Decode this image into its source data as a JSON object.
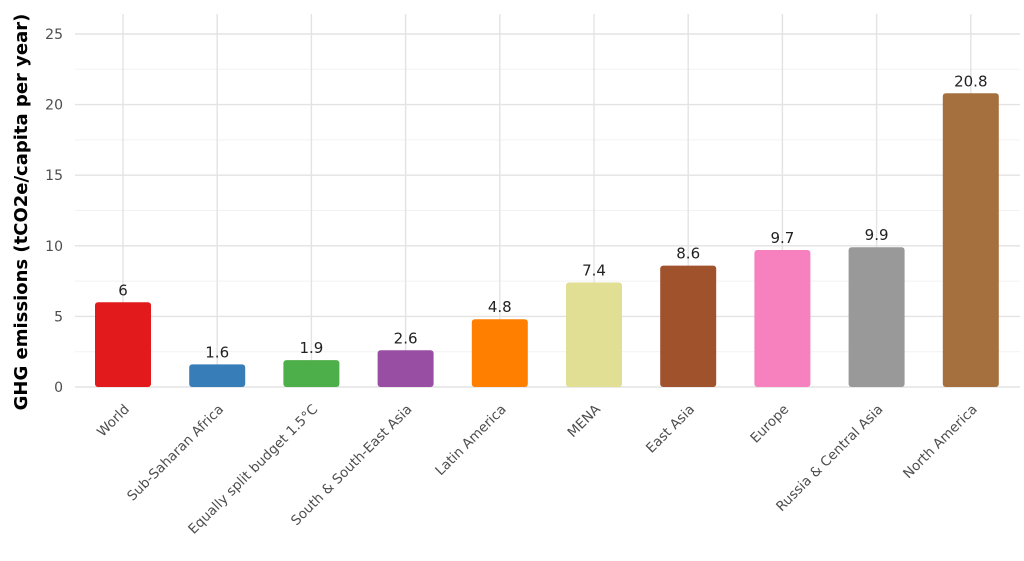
{
  "chart_data": {
    "type": "bar",
    "title": "",
    "xlabel": "",
    "ylabel": "GHG emissions (tCO2e/capita per year)",
    "ylim": [
      0,
      25
    ],
    "yticks": [
      0,
      5,
      10,
      15,
      20,
      25
    ],
    "grid": true,
    "legend": "none",
    "categories": [
      "World",
      "Sub-Saharan Africa",
      "Equally split budget 1.5°C",
      "South & South-East Asia",
      "Latin America",
      "MENA",
      "East Asia",
      "Europe",
      "Russia & Central Asia",
      "North America"
    ],
    "values": [
      6,
      1.6,
      1.9,
      2.6,
      4.8,
      7.4,
      8.6,
      9.7,
      9.9,
      20.8
    ],
    "value_labels": [
      "6",
      "1.6",
      "1.9",
      "2.6",
      "4.8",
      "7.4",
      "8.6",
      "9.7",
      "9.9",
      "20.8"
    ],
    "colors": [
      "#e31a1c",
      "#377eb8",
      "#4daf4a",
      "#984ea3",
      "#ff7f00",
      "#e0df93",
      "#a0522d",
      "#f781bf",
      "#999999",
      "#a6703e"
    ]
  }
}
